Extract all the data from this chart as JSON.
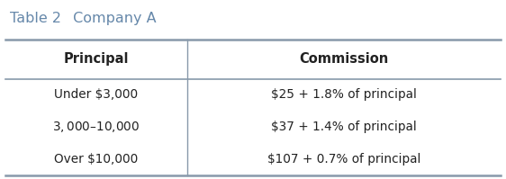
{
  "title1": "Table 2",
  "title2": " Company A",
  "col_headers": [
    "Principal",
    "Commission"
  ],
  "rows": [
    [
      "Under $3,000",
      "$25 + 1.8% of principal"
    ],
    [
      "$3,000–$10,000",
      "$37 + 1.4% of principal"
    ],
    [
      "Over $10,000",
      "$107 + 0.7% of principal"
    ]
  ],
  "background_color": "#ffffff",
  "line_color": "#8899aa",
  "title_color": "#6688aa",
  "header_text_color": "#222222",
  "body_text_color": "#222222",
  "figsize": [
    5.62,
    1.99
  ],
  "dpi": 100
}
